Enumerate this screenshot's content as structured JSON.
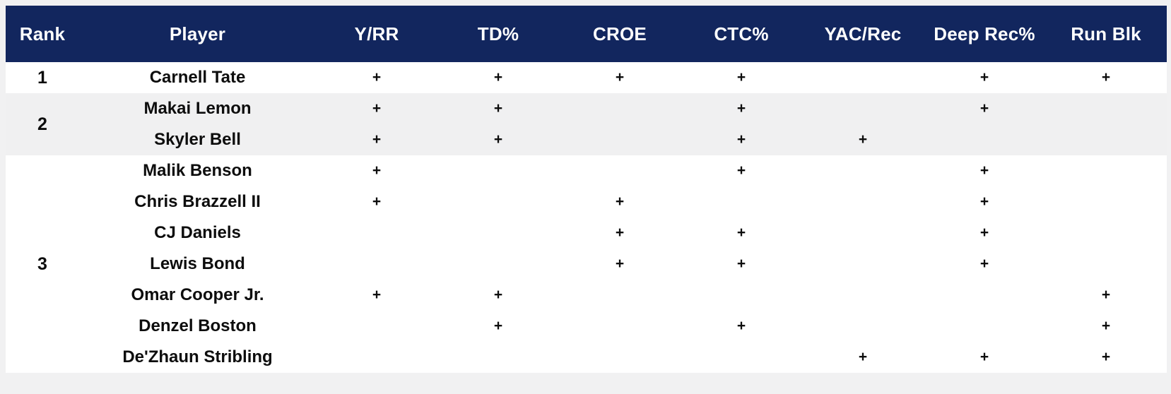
{
  "page": {
    "background_color": "#f1f1f2",
    "header_bg_color": "#12265e",
    "header_text_color": "#ffffff",
    "stripe_bg_color": "#f0f0f1",
    "mark_symbol": "+"
  },
  "chart_data": {
    "type": "table",
    "columns": [
      "Rank",
      "Player",
      "Y/RR",
      "TD%",
      "CROE",
      "CTC%",
      "YAC/Rec",
      "Deep Rec%",
      "Run Blk"
    ],
    "stat_columns": [
      "Y/RR",
      "TD%",
      "CROE",
      "CTC%",
      "YAC/Rec",
      "Deep Rec%",
      "Run Blk"
    ],
    "rank_groups": [
      {
        "label": "1",
        "span": 1
      },
      {
        "label": "2",
        "span": 2
      },
      {
        "label": "3",
        "span": 7
      }
    ],
    "rows": [
      {
        "rank": "1",
        "player": "Carnell Tate",
        "marks": [
          "+",
          "+",
          "+",
          "+",
          "",
          "+",
          "+"
        ]
      },
      {
        "rank": "2",
        "player": "Makai Lemon",
        "marks": [
          "+",
          "+",
          "",
          "+",
          "",
          "+",
          ""
        ]
      },
      {
        "rank": "2",
        "player": "Skyler Bell",
        "marks": [
          "+",
          "+",
          "",
          "+",
          "+",
          "",
          ""
        ]
      },
      {
        "rank": "3",
        "player": "Malik Benson",
        "marks": [
          "+",
          "",
          "",
          "+",
          "",
          "+",
          ""
        ]
      },
      {
        "rank": "3",
        "player": "Chris Brazzell II",
        "marks": [
          "+",
          "",
          "+",
          "",
          "",
          "+",
          ""
        ]
      },
      {
        "rank": "3",
        "player": "CJ Daniels",
        "marks": [
          "",
          "",
          "+",
          "+",
          "",
          "+",
          ""
        ]
      },
      {
        "rank": "3",
        "player": "Lewis Bond",
        "marks": [
          "",
          "",
          "+",
          "+",
          "",
          "+",
          ""
        ]
      },
      {
        "rank": "3",
        "player": "Omar Cooper Jr.",
        "marks": [
          "+",
          "+",
          "",
          "",
          "",
          "",
          "+"
        ]
      },
      {
        "rank": "3",
        "player": "Denzel Boston",
        "marks": [
          "",
          "+",
          "",
          "+",
          "",
          "",
          "+"
        ]
      },
      {
        "rank": "3",
        "player": "De'Zhaun Stribling",
        "marks": [
          "",
          "",
          "",
          "",
          "+",
          "+",
          "+"
        ]
      }
    ]
  }
}
